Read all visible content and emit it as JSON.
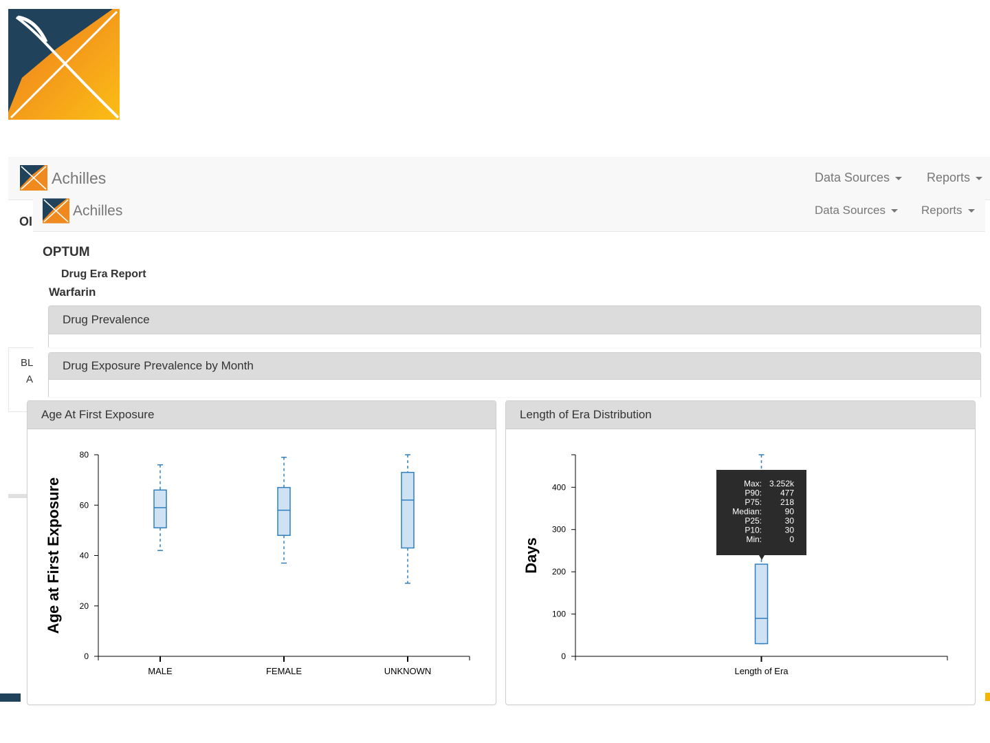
{
  "colors": {
    "logo_navy": "#20425a",
    "logo_orange": "#f0801e",
    "logo_yellow": "#fbbb16",
    "box_fill": "#cfe2f3",
    "box_stroke": "#2f7fbf",
    "tooltip_bg": "#2b2b2b"
  },
  "back_nav": {
    "brand": "Achilles",
    "data_sources": "Data Sources",
    "reports": "Reports",
    "fragment_ol": "OI",
    "fragment_bl": "BL",
    "fragment_a": "A"
  },
  "nav": {
    "brand": "Achilles",
    "data_sources": "Data Sources",
    "reports": "Reports"
  },
  "page": {
    "source": "OPTUM",
    "report": "Drug Era Report",
    "drug": "Warfarin"
  },
  "panels": {
    "prevalence": "Drug Prevalence",
    "month": "Drug Exposure Prevalence by Month",
    "age": "Age At First Exposure",
    "length": "Length of Era Distribution"
  },
  "chart_data": [
    {
      "type": "box",
      "title": "Age At First Exposure",
      "ylabel": "Age at First Exposure",
      "ylim": [
        0,
        80
      ],
      "yticks": [
        0,
        20,
        40,
        60,
        80
      ],
      "categories": [
        "MALE",
        "FEMALE",
        "UNKNOWN"
      ],
      "boxes": [
        {
          "category": "MALE",
          "min": 42,
          "q1": 51,
          "median": 59,
          "q3": 66,
          "max": 76
        },
        {
          "category": "FEMALE",
          "min": 37,
          "q1": 48,
          "median": 58,
          "q3": 67,
          "max": 79
        },
        {
          "category": "UNKNOWN",
          "min": 29,
          "q1": 43,
          "median": 62,
          "q3": 73,
          "max": 80
        }
      ]
    },
    {
      "type": "box",
      "title": "Length of Era Distribution",
      "ylabel": "Days",
      "ylim": [
        0,
        477
      ],
      "yticks": [
        0,
        100,
        200,
        300,
        400
      ],
      "categories": [
        "Length of Era"
      ],
      "boxes": [
        {
          "category": "Length of Era",
          "min": 30,
          "q1": 30,
          "median": 90,
          "q3": 218,
          "max": 477
        }
      ],
      "tooltip": [
        {
          "label": "Max:",
          "value": "3.252k"
        },
        {
          "label": "P90:",
          "value": "477"
        },
        {
          "label": "P75:",
          "value": "218"
        },
        {
          "label": "Median:",
          "value": "90"
        },
        {
          "label": "P25:",
          "value": "30"
        },
        {
          "label": "P10:",
          "value": "30"
        },
        {
          "label": "Min:",
          "value": "0"
        }
      ]
    }
  ]
}
